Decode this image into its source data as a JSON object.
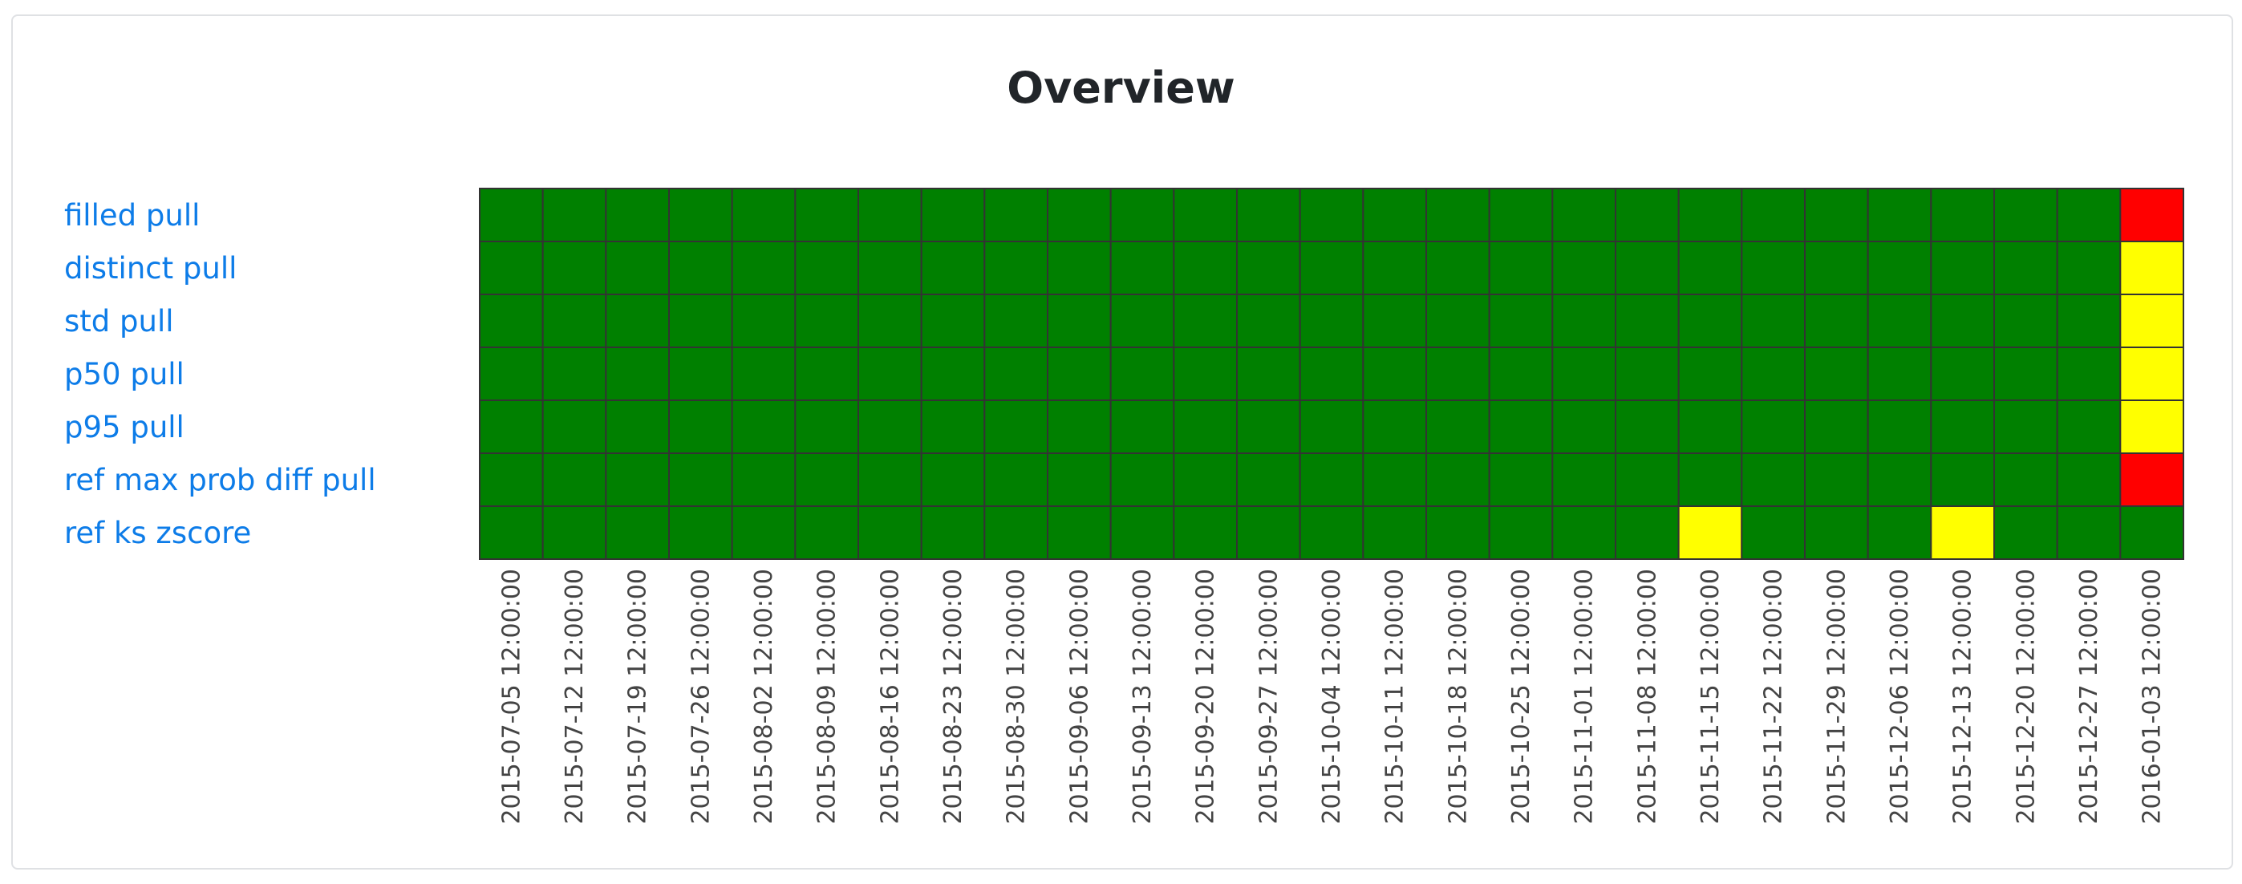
{
  "title": "Overview",
  "colors": {
    "green": "#008000",
    "yellow": "#ffff00",
    "red": "#ff0000",
    "gridline": "#333333",
    "link": "#0d7ce8"
  },
  "chart_data": {
    "type": "heatmap",
    "rows": [
      "filled pull",
      "distinct pull",
      "std pull",
      "p50 pull",
      "p95 pull",
      "ref max prob diff pull",
      "ref ks zscore"
    ],
    "columns": [
      "2015-07-05 12:00:00",
      "2015-07-12 12:00:00",
      "2015-07-19 12:00:00",
      "2015-07-26 12:00:00",
      "2015-08-02 12:00:00",
      "2015-08-09 12:00:00",
      "2015-08-16 12:00:00",
      "2015-08-23 12:00:00",
      "2015-08-30 12:00:00",
      "2015-09-06 12:00:00",
      "2015-09-13 12:00:00",
      "2015-09-20 12:00:00",
      "2015-09-27 12:00:00",
      "2015-10-04 12:00:00",
      "2015-10-11 12:00:00",
      "2015-10-18 12:00:00",
      "2015-10-25 12:00:00",
      "2015-11-01 12:00:00",
      "2015-11-08 12:00:00",
      "2015-11-15 12:00:00",
      "2015-11-22 12:00:00",
      "2015-11-29 12:00:00",
      "2015-12-06 12:00:00",
      "2015-12-13 12:00:00",
      "2015-12-20 12:00:00",
      "2015-12-27 12:00:00",
      "2016-01-03 12:00:00"
    ],
    "status": [
      [
        "green",
        "green",
        "green",
        "green",
        "green",
        "green",
        "green",
        "green",
        "green",
        "green",
        "green",
        "green",
        "green",
        "green",
        "green",
        "green",
        "green",
        "green",
        "green",
        "green",
        "green",
        "green",
        "green",
        "green",
        "green",
        "green",
        "red"
      ],
      [
        "green",
        "green",
        "green",
        "green",
        "green",
        "green",
        "green",
        "green",
        "green",
        "green",
        "green",
        "green",
        "green",
        "green",
        "green",
        "green",
        "green",
        "green",
        "green",
        "green",
        "green",
        "green",
        "green",
        "green",
        "green",
        "green",
        "yellow"
      ],
      [
        "green",
        "green",
        "green",
        "green",
        "green",
        "green",
        "green",
        "green",
        "green",
        "green",
        "green",
        "green",
        "green",
        "green",
        "green",
        "green",
        "green",
        "green",
        "green",
        "green",
        "green",
        "green",
        "green",
        "green",
        "green",
        "green",
        "yellow"
      ],
      [
        "green",
        "green",
        "green",
        "green",
        "green",
        "green",
        "green",
        "green",
        "green",
        "green",
        "green",
        "green",
        "green",
        "green",
        "green",
        "green",
        "green",
        "green",
        "green",
        "green",
        "green",
        "green",
        "green",
        "green",
        "green",
        "green",
        "yellow"
      ],
      [
        "green",
        "green",
        "green",
        "green",
        "green",
        "green",
        "green",
        "green",
        "green",
        "green",
        "green",
        "green",
        "green",
        "green",
        "green",
        "green",
        "green",
        "green",
        "green",
        "green",
        "green",
        "green",
        "green",
        "green",
        "green",
        "green",
        "yellow"
      ],
      [
        "green",
        "green",
        "green",
        "green",
        "green",
        "green",
        "green",
        "green",
        "green",
        "green",
        "green",
        "green",
        "green",
        "green",
        "green",
        "green",
        "green",
        "green",
        "green",
        "green",
        "green",
        "green",
        "green",
        "green",
        "green",
        "green",
        "red"
      ],
      [
        "green",
        "green",
        "green",
        "green",
        "green",
        "green",
        "green",
        "green",
        "green",
        "green",
        "green",
        "green",
        "green",
        "green",
        "green",
        "green",
        "green",
        "green",
        "green",
        "yellow",
        "green",
        "green",
        "green",
        "yellow",
        "green",
        "green",
        "green"
      ]
    ]
  }
}
